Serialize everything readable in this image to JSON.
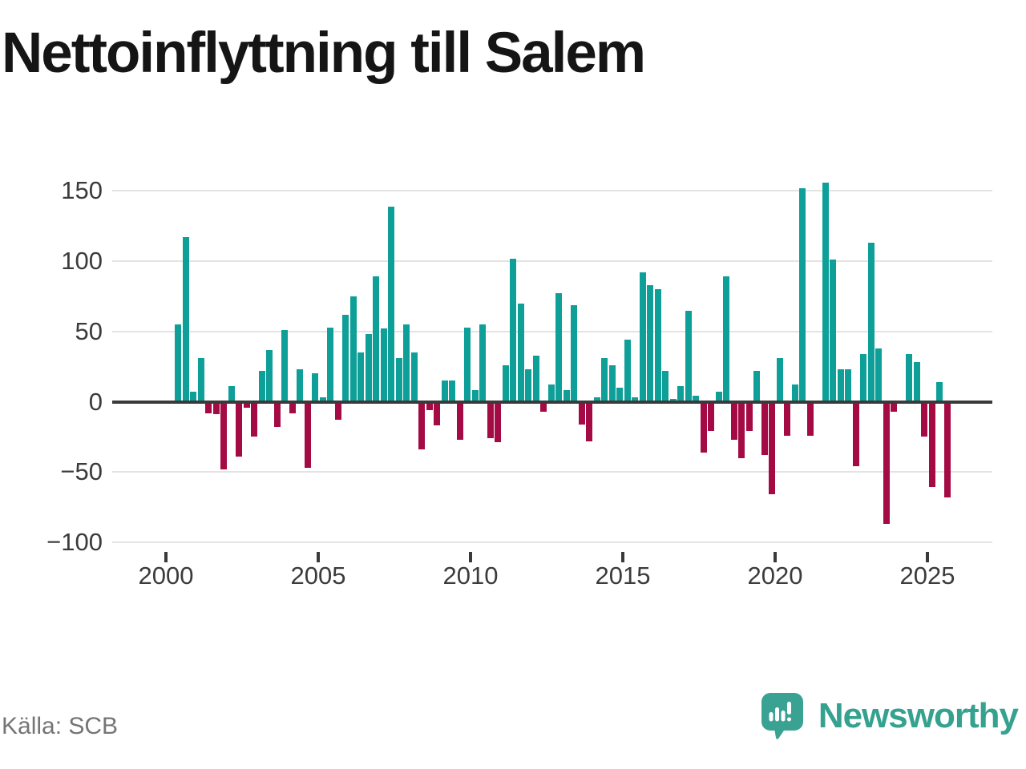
{
  "title": "Nettoinflyttning till Salem",
  "source": "Källa: SCB",
  "branding": {
    "logo_text": "Newsworthy",
    "logo_icon": "newsworthy-speech-bubble-barchart-icon"
  },
  "colors": {
    "positive_bar": "#0E9F98",
    "negative_bar": "#A40B44",
    "zero_line": "#3a3a3a",
    "gridline": "#e3e3e3",
    "axis_text": "#3b3b3b",
    "title_text": "#151515",
    "source_text": "#757575",
    "brand_teal": "#3aa293"
  },
  "chart_data": {
    "type": "bar",
    "title": "Nettoinflyttning till Salem",
    "xlabel": "",
    "ylabel": "",
    "frequency": "quarterly",
    "legend": "none",
    "grid": "horizontal",
    "ylim": [
      -100,
      160
    ],
    "y_ticks": [
      150,
      100,
      50,
      0,
      -50,
      -100
    ],
    "x_ticks": [
      2000,
      2005,
      2010,
      2015,
      2020,
      2025
    ],
    "periods": [
      "2000K2",
      "2000K3",
      "2000K4",
      "2001K1",
      "2001K2",
      "2001K3",
      "2001K4",
      "2002K1",
      "2002K2",
      "2002K3",
      "2002K4",
      "2003K1",
      "2003K2",
      "2003K3",
      "2003K4",
      "2004K1",
      "2004K2",
      "2004K3",
      "2004K4",
      "2005K1",
      "2005K2",
      "2005K3",
      "2005K4",
      "2006K1",
      "2006K2",
      "2006K3",
      "2006K4",
      "2007K1",
      "2007K2",
      "2007K3",
      "2007K4",
      "2008K1",
      "2008K2",
      "2008K3",
      "2008K4",
      "2009K1",
      "2009K2",
      "2009K3",
      "2009K4",
      "2010K1",
      "2010K2",
      "2010K3",
      "2010K4",
      "2011K1",
      "2011K2",
      "2011K3",
      "2011K4",
      "2012K1",
      "2012K2",
      "2012K3",
      "2012K4",
      "2013K1",
      "2013K2",
      "2013K3",
      "2013K4",
      "2014K1",
      "2014K2",
      "2014K3",
      "2014K4",
      "2015K1",
      "2015K2",
      "2015K3",
      "2015K4",
      "2016K1",
      "2016K2",
      "2016K3",
      "2016K4",
      "2017K1",
      "2017K2",
      "2017K3",
      "2017K4",
      "2018K1",
      "2018K2",
      "2018K3",
      "2018K4",
      "2019K1",
      "2019K2",
      "2019K3",
      "2019K4",
      "2020K1",
      "2020K2",
      "2020K3",
      "2020K4",
      "2021K1",
      "2021K2",
      "2021K3",
      "2021K4",
      "2022K1",
      "2022K2",
      "2022K3",
      "2022K4",
      "2023K1",
      "2023K2",
      "2023K3",
      "2023K4",
      "2024K1",
      "2024K2",
      "2024K3",
      "2024K4",
      "2025K1",
      "2025K2",
      "2025K3"
    ],
    "values": [
      55,
      117,
      7,
      31,
      -8,
      -9,
      -48,
      11,
      -39,
      -4,
      -25,
      22,
      37,
      -18,
      51,
      -8,
      23,
      -47,
      20,
      3,
      53,
      -13,
      62,
      75,
      35,
      48,
      89,
      52,
      139,
      31,
      55,
      35,
      -34,
      -6,
      -17,
      15,
      15,
      -27,
      53,
      8,
      55,
      -26,
      -29,
      26,
      102,
      70,
      23,
      33,
      -7,
      12,
      77,
      8,
      69,
      -16,
      -28,
      3,
      31,
      26,
      10,
      44,
      3,
      92,
      83,
      80,
      22,
      2,
      11,
      65,
      4,
      -36,
      -21,
      7,
      89,
      -27,
      -40,
      -21,
      22,
      -38,
      -66,
      31,
      -24,
      12,
      152,
      -24,
      0,
      156,
      101,
      23,
      23,
      -46,
      34,
      113,
      38,
      -87,
      -7,
      1,
      34,
      28,
      -25,
      -61,
      14,
      -68
    ]
  }
}
